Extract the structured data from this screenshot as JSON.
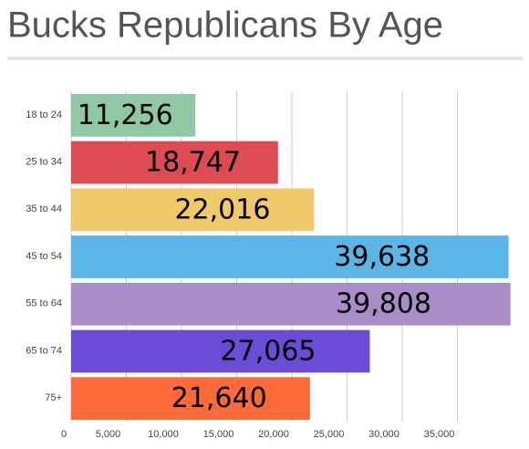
{
  "chart_data": {
    "type": "bar",
    "orientation": "horizontal",
    "title": "Bucks Republicans By Age",
    "categories": [
      "18 to 24",
      "25 to 34",
      "35 to 44",
      "45 to 54",
      "55 to 64",
      "65 to 74",
      "75+"
    ],
    "values": [
      11256,
      18747,
      22016,
      39638,
      39808,
      27065,
      21640
    ],
    "value_labels": [
      "11,256",
      "18,747",
      "22,016",
      "39,638",
      "39,808",
      "27,065",
      "21,640"
    ],
    "colors": [
      "#8fc9a3",
      "#dc4c52",
      "#f0c96a",
      "#5bb5e6",
      "#a98dc6",
      "#6a4cd6",
      "#fb6a38"
    ],
    "xlim": [
      0,
      40000
    ],
    "xticks": [
      0,
      {
        "value": 5000,
        "label": "5,000"
      },
      {
        "value": 10000,
        "label": "10,000"
      },
      {
        "value": 15000,
        "label": "15,000"
      },
      {
        "value": 20000,
        "label": "20,000"
      },
      {
        "value": 25000,
        "label": "25,000"
      },
      {
        "value": 30000,
        "label": "30,000"
      },
      {
        "value": 35000,
        "label": "35,000"
      }
    ],
    "grid": true
  }
}
